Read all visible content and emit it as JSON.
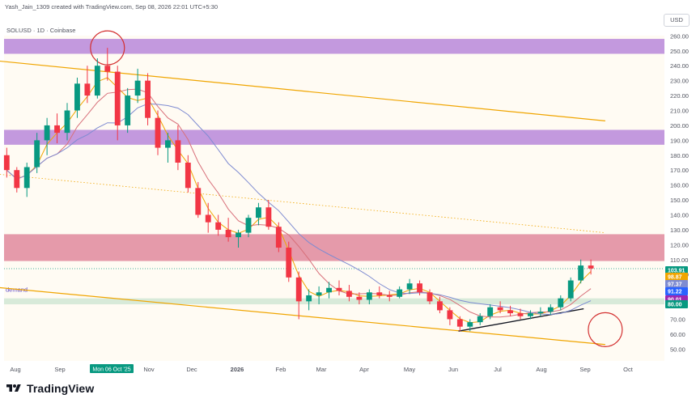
{
  "header": {
    "credit": "Yash_Jain_1309 created with TradingView.com, Sep 08, 2026 22:01 UTC+5:30",
    "symbol": "SOLUSD · 1D · Coinbase",
    "currency": "USD"
  },
  "footer": {
    "brand": "TradingView"
  },
  "chart_data": {
    "type": "candlestick",
    "title": "",
    "xlabel": "",
    "ylabel": "",
    "ylim": [
      40,
      265
    ],
    "grid": false,
    "price_ticks": [
      50,
      60,
      70,
      80,
      90,
      100,
      110,
      120,
      130,
      140,
      150,
      160,
      170,
      180,
      190,
      200,
      210,
      220,
      230,
      240,
      250,
      260
    ],
    "time_labels": [
      "Aug",
      "Sep",
      "Mon 06 Oct '25",
      "Nov",
      "Dec",
      "2026",
      "Feb",
      "Mar",
      "Apr",
      "May",
      "Jun",
      "Jul",
      "Aug",
      "Sep",
      "Oct"
    ],
    "zones": [
      {
        "kind": "supply",
        "from": 248,
        "to": 258,
        "color": "#9b59d0"
      },
      {
        "kind": "supply",
        "from": 187,
        "to": 197,
        "color": "#9b59d0"
      },
      {
        "kind": "resistance",
        "from": 109,
        "to": 127,
        "color": "#d45a7a"
      },
      {
        "kind": "demand",
        "from": 80,
        "to": 84,
        "color": "#4caf80",
        "label": "demand"
      }
    ],
    "current_price": 103.91,
    "price_tags": [
      {
        "value": "103.91",
        "color": "#089981"
      },
      {
        "value": "98.87",
        "color": "#f0a500"
      },
      {
        "value": "97.37",
        "color": "#7e8bd1"
      },
      {
        "value": "91.22",
        "color": "#2962ff"
      },
      {
        "value": "90.01",
        "color": "#9c27b0"
      },
      {
        "value": "80.00",
        "color": "#089981"
      }
    ],
    "channel": {
      "upper": [
        {
          "date": "Jul '25",
          "price": 245
        },
        {
          "date": "Sep 15 '26",
          "price": 203
        }
      ],
      "lower": [
        {
          "date": "Jul '25",
          "price": 93
        },
        {
          "date": "Sep 15 '26",
          "price": 53
        }
      ]
    },
    "trendline": [
      {
        "date": "Jun 05 '26",
        "price": 62
      },
      {
        "date": "Aug 31 '26",
        "price": 77
      }
    ],
    "series": [
      {
        "name": "",
        "color": "#f0a500",
        "role": "moving-average-1"
      },
      {
        "name": "",
        "color": "#d8707a",
        "role": "moving-average-2"
      },
      {
        "name": "",
        "color": "#7e8bd1",
        "role": "moving-average-3"
      }
    ],
    "ohlc": [
      [
        "Jul 26 '25",
        180,
        185,
        165,
        170
      ],
      [
        "Aug 02 '25",
        170,
        172,
        155,
        158
      ],
      [
        "Aug 09 '25",
        158,
        175,
        152,
        172
      ],
      [
        "Aug 16 '25",
        172,
        195,
        168,
        190
      ],
      [
        "Aug 23 '25",
        190,
        205,
        180,
        200
      ],
      [
        "Aug 30 '25",
        200,
        208,
        188,
        195
      ],
      [
        "Sep 06 '25",
        195,
        215,
        190,
        210
      ],
      [
        "Sep 13 '25",
        210,
        232,
        205,
        228
      ],
      [
        "Sep 20 '25",
        228,
        240,
        215,
        220
      ],
      [
        "Sep 27 '25",
        220,
        245,
        218,
        240
      ],
      [
        "Oct 04 '25",
        240,
        252,
        230,
        236
      ],
      [
        "Oct 11 '25",
        236,
        240,
        190,
        200
      ],
      [
        "Oct 18 '25",
        200,
        225,
        195,
        220
      ],
      [
        "Oct 25 '25",
        220,
        238,
        215,
        230
      ],
      [
        "Nov 01 '25",
        230,
        235,
        200,
        205
      ],
      [
        "Nov 08 '25",
        205,
        210,
        180,
        185
      ],
      [
        "Nov 15 '25",
        185,
        195,
        175,
        190
      ],
      [
        "Nov 22 '25",
        190,
        200,
        170,
        175
      ],
      [
        "Nov 29 '25",
        175,
        180,
        155,
        158
      ],
      [
        "Dec 06 '25",
        158,
        162,
        138,
        140
      ],
      [
        "Dec 13 '25",
        140,
        148,
        128,
        135
      ],
      [
        "Dec 20 '25",
        135,
        140,
        126,
        130
      ],
      [
        "Dec 27 '25",
        130,
        138,
        122,
        125
      ],
      [
        "Jan 03 '26",
        125,
        130,
        118,
        128
      ],
      [
        "Jan 10 '26",
        128,
        140,
        125,
        138
      ],
      [
        "Jan 17 '26",
        138,
        148,
        133,
        145
      ],
      [
        "Jan 24 '26",
        145,
        150,
        130,
        132
      ],
      [
        "Jan 31 '26",
        132,
        135,
        115,
        118
      ],
      [
        "Feb 07 '26",
        118,
        122,
        95,
        98
      ],
      [
        "Feb 14 '26",
        98,
        102,
        70,
        82
      ],
      [
        "Feb 21 '26",
        82,
        90,
        76,
        86
      ],
      [
        "Feb 28 '26",
        86,
        92,
        80,
        88
      ],
      [
        "Mar 07 '26",
        88,
        95,
        84,
        91
      ],
      [
        "Mar 14 '26",
        91,
        96,
        86,
        89
      ],
      [
        "Mar 21 '26",
        89,
        93,
        82,
        85
      ],
      [
        "Mar 28 '26",
        85,
        88,
        80,
        83
      ],
      [
        "Apr 04 '26",
        83,
        90,
        80,
        88
      ],
      [
        "Apr 11 '26",
        88,
        92,
        84,
        86
      ],
      [
        "Apr 18 '26",
        86,
        89,
        82,
        85
      ],
      [
        "Apr 25 '26",
        85,
        92,
        84,
        90
      ],
      [
        "May 02 '26",
        90,
        97,
        87,
        94
      ],
      [
        "May 09 '26",
        94,
        96,
        86,
        88
      ],
      [
        "May 16 '26",
        88,
        90,
        80,
        82
      ],
      [
        "May 23 '26",
        82,
        85,
        74,
        76
      ],
      [
        "May 30 '26",
        76,
        78,
        66,
        70
      ],
      [
        "Jun 06 '26",
        70,
        72,
        62,
        65
      ],
      [
        "Jun 13 '26",
        65,
        70,
        62,
        68
      ],
      [
        "Jun 20 '26",
        68,
        74,
        66,
        72
      ],
      [
        "Jun 27 '26",
        72,
        80,
        70,
        78
      ],
      [
        "Jul 04 '26",
        78,
        82,
        74,
        76
      ],
      [
        "Jul 11 '26",
        76,
        79,
        72,
        74
      ],
      [
        "Jul 18 '26",
        74,
        77,
        70,
        72
      ],
      [
        "Jul 25 '26",
        72,
        76,
        70,
        74
      ],
      [
        "Aug 01 '26",
        74,
        78,
        72,
        75
      ],
      [
        "Aug 08 '26",
        75,
        80,
        73,
        78
      ],
      [
        "Aug 15 '26",
        78,
        86,
        76,
        84
      ],
      [
        "Aug 22 '26",
        84,
        98,
        82,
        96
      ],
      [
        "Aug 29 '26",
        96,
        110,
        94,
        106
      ],
      [
        "Sep 05 '26",
        106,
        110,
        100,
        104
      ]
    ],
    "annotations": [
      {
        "shape": "circle",
        "date": "Oct 04 '25",
        "price": 252,
        "color": "#d32f2f"
      },
      {
        "shape": "circle",
        "date": "Sep 15 '26",
        "price": 63,
        "color": "#d32f2f"
      }
    ]
  }
}
